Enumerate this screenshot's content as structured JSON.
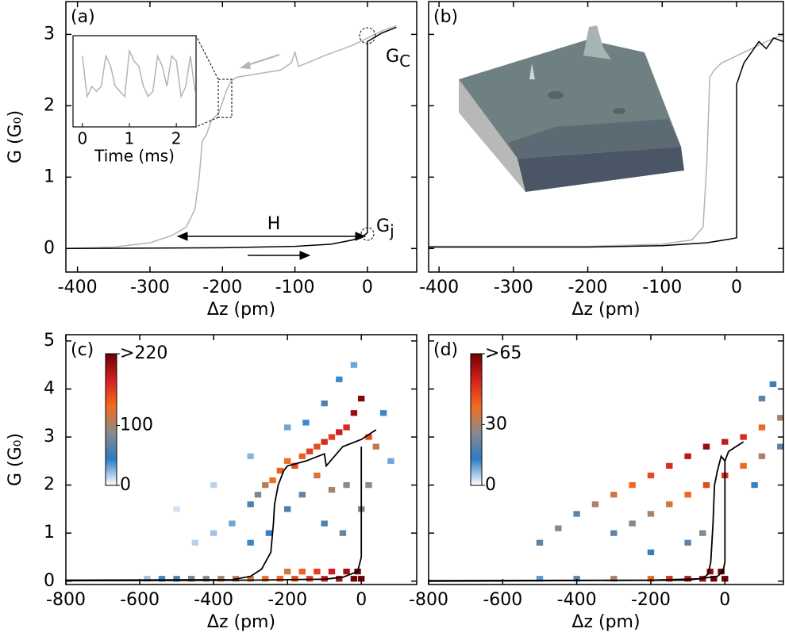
{
  "chart_data": [
    {
      "type": "line",
      "panel_label": "(a)",
      "xlabel": "Δz (pm)",
      "ylabel": "G (G₀)",
      "xlim": [
        -416,
        68
      ],
      "ylim": [
        -0.33,
        3.46
      ],
      "xticks": [
        -400,
        -300,
        -200,
        -100,
        0
      ],
      "yticks": [
        0,
        1,
        2,
        3
      ],
      "series": [
        {
          "color": "#b4b4b4",
          "x": [
            -416,
            -350,
            -300,
            -270,
            -250,
            -238,
            -232,
            -228,
            -222,
            -215,
            -205,
            -195,
            -188,
            -180,
            -150,
            -120,
            -105,
            -100,
            -95,
            -60,
            -20,
            0,
            20,
            40
          ],
          "values": [
            0.0,
            0.02,
            0.08,
            0.18,
            0.3,
            0.55,
            1.0,
            1.5,
            1.6,
            1.8,
            1.9,
            2.2,
            2.35,
            2.4,
            2.45,
            2.5,
            2.6,
            2.75,
            2.55,
            2.7,
            2.85,
            2.95,
            3.05,
            3.12
          ]
        },
        {
          "color": "#000000",
          "x": [
            -416,
            -200,
            -100,
            -50,
            -20,
            -5,
            0,
            0,
            20,
            40
          ],
          "values": [
            0.0,
            0.01,
            0.03,
            0.06,
            0.12,
            0.18,
            0.22,
            2.9,
            3.02,
            3.1
          ]
        }
      ],
      "annotations": [
        {
          "text": "G",
          "sub": "C"
        },
        {
          "text": "G",
          "sub": "j"
        },
        {
          "text": "H"
        }
      ],
      "inset": {
        "xlabel": "Time (ms)",
        "xlim": [
          -0.2,
          2.42
        ],
        "ylim": [
          1.6,
          2.5
        ],
        "xticks": [
          0,
          1,
          2
        ],
        "color": "#b4b4b4",
        "x": [
          0,
          0.1,
          0.2,
          0.3,
          0.4,
          0.5,
          0.6,
          0.7,
          0.8,
          0.9,
          1.0,
          1.1,
          1.2,
          1.3,
          1.4,
          1.5,
          1.6,
          1.7,
          1.8,
          1.9,
          2.0,
          2.1,
          2.2,
          2.3,
          2.4
        ],
        "values": [
          2.3,
          1.9,
          2.0,
          1.95,
          2.0,
          2.3,
          2.2,
          2.0,
          1.95,
          1.9,
          2.35,
          2.25,
          2.2,
          2.0,
          1.9,
          1.95,
          2.3,
          2.2,
          2.0,
          2.3,
          2.25,
          1.9,
          2.0,
          2.3,
          1.95
        ]
      }
    },
    {
      "type": "line",
      "panel_label": "(b)",
      "xlabel": "Δz (pm)",
      "show_ytick_labels": false,
      "xlim": [
        -414,
        63
      ],
      "ylim": [
        -0.33,
        3.46
      ],
      "xticks": [
        -400,
        -300,
        -200,
        -100,
        0
      ],
      "yticks": [
        0,
        1,
        2,
        3
      ],
      "series": [
        {
          "color": "#b4b4b4",
          "x": [
            -414,
            -200,
            -100,
            -60,
            -45,
            -40,
            -36,
            -30,
            -20,
            0,
            20,
            40,
            63
          ],
          "values": [
            0.03,
            0.03,
            0.06,
            0.12,
            0.3,
            1.2,
            2.4,
            2.5,
            2.6,
            2.7,
            2.8,
            2.9,
            3.0
          ]
        },
        {
          "color": "#000000",
          "x": [
            -414,
            -200,
            -100,
            -40,
            -10,
            0,
            0,
            10,
            20,
            30,
            40,
            50,
            63
          ],
          "values": [
            0.02,
            0.02,
            0.04,
            0.08,
            0.13,
            0.15,
            2.3,
            2.6,
            2.75,
            2.9,
            2.8,
            2.95,
            2.9
          ]
        }
      ]
    },
    {
      "type": "heatmap",
      "panel_label": "(c)",
      "xlabel": "Δz (pm)",
      "ylabel": "G (G₀)",
      "xlim": [
        -800,
        150
      ],
      "ylim": [
        -0.07,
        5.13
      ],
      "xticks": [
        -800,
        -600,
        -400,
        -200,
        0
      ],
      "yticks": [
        0,
        1,
        2,
        3,
        4,
        5
      ],
      "colormap": [
        "#ffffff",
        "#2b7cc4",
        "#8a8a8a",
        "#f26d1f",
        "#d42020",
        "#6e0000"
      ],
      "clim": [
        0,
        220
      ],
      "cticks": [
        0,
        100,
        {
          "value": 220,
          "label": ">220"
        }
      ],
      "bin_width": 18,
      "bin_height": 0.12,
      "cells": {
        "x": [
          -580,
          -540,
          -500,
          -460,
          -420,
          -380,
          -340,
          -300,
          -260,
          -220,
          -180,
          -140,
          -100,
          -60,
          -20,
          0,
          -200,
          -160,
          -120,
          -80,
          -40,
          -10,
          -300,
          -280,
          -260,
          -240,
          -220,
          -200,
          -180,
          -160,
          -140,
          -120,
          -100,
          -80,
          -60,
          -40,
          -20,
          0,
          20,
          40,
          -40,
          -80,
          -120,
          -160,
          -200,
          -350,
          -400,
          -450,
          -300,
          -250,
          -100,
          -50,
          -150,
          -100,
          -60,
          -20,
          60,
          80,
          -500,
          -400,
          -300,
          -200,
          0,
          20
        ],
        "y": [
          0.05,
          0.05,
          0.05,
          0.05,
          0.05,
          0.05,
          0.05,
          0.05,
          0.05,
          0.05,
          0.05,
          0.05,
          0.05,
          0.05,
          0.05,
          0.05,
          0.2,
          0.2,
          0.2,
          0.2,
          0.2,
          0.2,
          1.6,
          1.8,
          2.0,
          2.1,
          2.3,
          2.5,
          2.4,
          2.6,
          2.7,
          2.8,
          2.9,
          3.0,
          3.1,
          3.2,
          3.5,
          3.8,
          3.0,
          2.8,
          2.0,
          1.9,
          2.2,
          1.8,
          1.5,
          1.2,
          1.0,
          0.8,
          0.8,
          1.0,
          1.2,
          1.0,
          3.3,
          3.7,
          4.2,
          4.5,
          3.5,
          2.5,
          1.5,
          2.0,
          2.6,
          3.2,
          1.5,
          2.0
        ],
        "counts": [
          20,
          40,
          60,
          80,
          90,
          100,
          110,
          120,
          130,
          140,
          150,
          160,
          180,
          200,
          220,
          220,
          120,
          140,
          160,
          180,
          200,
          220,
          60,
          80,
          110,
          130,
          140,
          130,
          150,
          140,
          160,
          150,
          170,
          160,
          180,
          170,
          200,
          210,
          150,
          110,
          90,
          100,
          120,
          70,
          60,
          30,
          20,
          15,
          40,
          50,
          60,
          70,
          40,
          60,
          40,
          30,
          40,
          30,
          10,
          15,
          25,
          30,
          80,
          90
        ]
      },
      "series": [
        {
          "color": "#000000",
          "x": [
            -800,
            -350,
            -300,
            -270,
            -245,
            -238,
            -235,
            -225,
            -210,
            -200,
            -150,
            -100,
            -95,
            -50,
            0,
            40
          ],
          "values": [
            0.02,
            0.03,
            0.1,
            0.25,
            0.6,
            1.2,
            1.6,
            2.0,
            2.3,
            2.4,
            2.5,
            2.65,
            2.4,
            2.8,
            2.95,
            3.15
          ]
        },
        {
          "color": "#000000",
          "x": [
            -800,
            -300,
            -100,
            -50,
            -10,
            0,
            0
          ],
          "values": [
            0.01,
            0.02,
            0.04,
            0.08,
            0.2,
            0.5,
            2.8
          ]
        }
      ]
    },
    {
      "type": "heatmap",
      "panel_label": "(d)",
      "xlabel": "Δz (pm)",
      "show_ytick_labels": false,
      "xlim": [
        -800,
        158
      ],
      "ylim": [
        -0.07,
        5.13
      ],
      "xticks": [
        -800,
        -600,
        -400,
        -200,
        0
      ],
      "yticks": [
        0,
        1,
        2,
        3,
        4,
        5
      ],
      "colormap": [
        "#ffffff",
        "#2b7cc4",
        "#8a8a8a",
        "#f26d1f",
        "#d42020",
        "#6e0000"
      ],
      "clim": [
        0,
        65
      ],
      "cticks": [
        0,
        30,
        {
          "value": 65,
          "label": ">65"
        }
      ],
      "bin_width": 18,
      "bin_height": 0.12,
      "cells": {
        "x": [
          -500,
          -400,
          -300,
          -200,
          -150,
          -100,
          -60,
          -30,
          0,
          -40,
          -10,
          -500,
          -450,
          -400,
          -350,
          -300,
          -250,
          -200,
          -150,
          -100,
          -50,
          0,
          50,
          100,
          150,
          -300,
          -250,
          -200,
          -150,
          -100,
          -50,
          0,
          50,
          100,
          150,
          -100,
          -60,
          100,
          130,
          -200,
          80
        ],
        "y": [
          0.05,
          0.05,
          0.05,
          0.05,
          0.05,
          0.05,
          0.05,
          0.05,
          0.05,
          0.2,
          0.2,
          0.8,
          1.1,
          1.4,
          1.6,
          1.8,
          2.0,
          2.2,
          2.4,
          2.6,
          2.8,
          2.9,
          3.0,
          3.2,
          3.4,
          1.0,
          1.2,
          1.4,
          1.6,
          1.8,
          2.0,
          2.2,
          2.4,
          2.6,
          2.8,
          0.8,
          1.0,
          3.8,
          4.1,
          0.6,
          2.0
        ],
        "counts": [
          10,
          20,
          30,
          40,
          50,
          55,
          60,
          65,
          65,
          60,
          65,
          20,
          25,
          20,
          30,
          35,
          40,
          45,
          50,
          55,
          60,
          55,
          50,
          40,
          30,
          20,
          25,
          30,
          35,
          40,
          45,
          50,
          40,
          30,
          20,
          20,
          25,
          20,
          15,
          15,
          15
        ]
      },
      "series": [
        {
          "color": "#000000",
          "x": [
            -800,
            -200,
            -60,
            -45,
            -38,
            -32,
            -28,
            -20,
            -10,
            0,
            10,
            30,
            50
          ],
          "values": [
            0.01,
            0.02,
            0.05,
            0.15,
            0.4,
            1.2,
            2.0,
            2.3,
            2.6,
            2.5,
            2.7,
            2.8,
            2.9
          ]
        },
        {
          "color": "#000000",
          "x": [
            -800,
            -100,
            -20,
            -5,
            0,
            0
          ],
          "values": [
            0.0,
            0.02,
            0.1,
            0.2,
            0.4,
            2.5
          ]
        }
      ]
    }
  ]
}
